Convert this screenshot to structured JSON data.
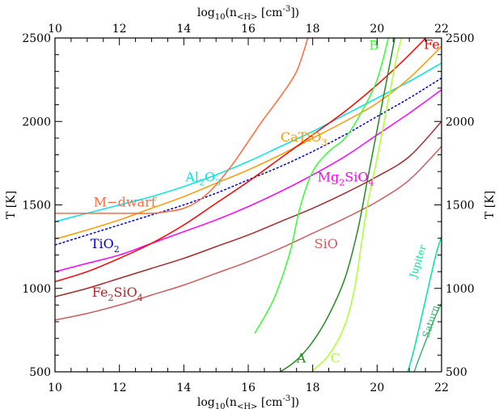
{
  "chart_data": {
    "type": "line",
    "xlabel": "log10(n<H> [cm-3])",
    "xlabel_parts": {
      "pre": "log",
      "sub10": "10",
      "mid": "(n",
      "subH": "<H>",
      "post": " [cm",
      "sup": "-3",
      "end": "])"
    },
    "ylabel": "T [K]",
    "xlim": [
      10,
      22
    ],
    "ylim": [
      500,
      2500
    ],
    "xticks": [
      10,
      12,
      14,
      16,
      18,
      20,
      22
    ],
    "yticks": [
      500,
      1000,
      1500,
      2000,
      2500
    ],
    "xtick_labels": [
      "10",
      "12",
      "14",
      "16",
      "18",
      "20",
      "22"
    ],
    "ytick_labels": [
      "500",
      "1000",
      "1500",
      "2000",
      "2500"
    ],
    "grid": false,
    "series": [
      {
        "name": "Al2O3",
        "label_parts": [
          [
            "Al",
            ""
          ],
          [
            "2",
            "sub"
          ],
          [
            "O",
            ""
          ],
          [
            "3",
            "sub"
          ]
        ],
        "color": "#00e5e5",
        "dash": "",
        "label_at": [
          14.05,
          1640
        ],
        "points": [
          [
            10,
            1400
          ],
          [
            11,
            1450
          ],
          [
            12,
            1500
          ],
          [
            13,
            1550
          ],
          [
            14,
            1610
          ],
          [
            15,
            1680
          ],
          [
            16,
            1760
          ],
          [
            17,
            1850
          ],
          [
            18,
            1940
          ],
          [
            19,
            2040
          ],
          [
            20,
            2140
          ],
          [
            21,
            2240
          ],
          [
            22,
            2350
          ]
        ]
      },
      {
        "name": "CaTiO3",
        "label_parts": [
          [
            "CaTiO",
            ""
          ],
          [
            "3",
            "sub"
          ]
        ],
        "color": "#ff9900",
        "dash": "",
        "label_at": [
          17.0,
          1880
        ],
        "points": [
          [
            10,
            1295
          ],
          [
            11,
            1350
          ],
          [
            12,
            1410
          ],
          [
            13,
            1480
          ],
          [
            14,
            1550
          ],
          [
            15,
            1630
          ],
          [
            16,
            1710
          ],
          [
            17,
            1800
          ],
          [
            18,
            1900
          ],
          [
            19,
            2000
          ],
          [
            20,
            2110
          ],
          [
            21,
            2260
          ],
          [
            22,
            2450
          ]
        ]
      },
      {
        "name": "TiO2",
        "label_parts": [
          [
            "TiO",
            ""
          ],
          [
            "2",
            "sub"
          ]
        ],
        "color": "#0000cc",
        "dash": "3,2",
        "label_at": [
          11.1,
          1240
        ],
        "points": [
          [
            10,
            1260
          ],
          [
            11,
            1320
          ],
          [
            12,
            1380
          ],
          [
            13,
            1440
          ],
          [
            14,
            1500
          ],
          [
            15,
            1570
          ],
          [
            16,
            1650
          ],
          [
            17,
            1730
          ],
          [
            18,
            1820
          ],
          [
            19,
            1920
          ],
          [
            20,
            2030
          ],
          [
            21,
            2140
          ],
          [
            22,
            2260
          ]
        ]
      },
      {
        "name": "Mg2SiO4",
        "label_parts": [
          [
            "Mg",
            ""
          ],
          [
            "2",
            "sub"
          ],
          [
            "SiO",
            ""
          ],
          [
            "4",
            "sub"
          ]
        ],
        "color": "#ff00ff",
        "dash": "",
        "label_at": [
          18.15,
          1640
        ],
        "points": [
          [
            10,
            1100
          ],
          [
            11,
            1150
          ],
          [
            12,
            1200
          ],
          [
            13,
            1270
          ],
          [
            14,
            1340
          ],
          [
            15,
            1410
          ],
          [
            16,
            1490
          ],
          [
            17,
            1580
          ],
          [
            18,
            1680
          ],
          [
            19,
            1790
          ],
          [
            20,
            1920
          ],
          [
            21,
            2050
          ],
          [
            22,
            2190
          ]
        ]
      },
      {
        "name": "Fe",
        "label_parts": [
          [
            "Fe",
            ""
          ]
        ],
        "color": "#ff0000",
        "dash": "",
        "label_at": [
          21.45,
          2435
        ],
        "points": [
          [
            10,
            1040
          ],
          [
            11,
            1100
          ],
          [
            12,
            1180
          ],
          [
            13,
            1270
          ],
          [
            14,
            1380
          ],
          [
            15,
            1510
          ],
          [
            16,
            1640
          ],
          [
            17,
            1780
          ],
          [
            18,
            1920
          ],
          [
            19,
            2060
          ],
          [
            20,
            2220
          ],
          [
            21,
            2400
          ],
          [
            22,
            2600
          ]
        ]
      },
      {
        "name": "Fe2SiO4",
        "label_parts": [
          [
            "Fe",
            ""
          ],
          [
            "2",
            "sub"
          ],
          [
            "SiO",
            ""
          ],
          [
            "4",
            "sub"
          ]
        ],
        "color": "#a52a2a",
        "dash": "",
        "label_at": [
          11.15,
          950
        ],
        "points": [
          [
            10,
            950
          ],
          [
            11,
            1000
          ],
          [
            12,
            1060
          ],
          [
            13,
            1120
          ],
          [
            14,
            1180
          ],
          [
            15,
            1250
          ],
          [
            16,
            1320
          ],
          [
            17,
            1400
          ],
          [
            18,
            1480
          ],
          [
            19,
            1570
          ],
          [
            20,
            1670
          ],
          [
            21,
            1790
          ],
          [
            22,
            2000
          ]
        ]
      },
      {
        "name": "SiO",
        "label_parts": [
          [
            "SiO",
            ""
          ]
        ],
        "color": "#cd5c5c",
        "dash": "",
        "label_at": [
          18.05,
          1240
        ],
        "points": [
          [
            10,
            810
          ],
          [
            11,
            850
          ],
          [
            12,
            900
          ],
          [
            13,
            960
          ],
          [
            14,
            1020
          ],
          [
            15,
            1090
          ],
          [
            16,
            1160
          ],
          [
            17,
            1240
          ],
          [
            18,
            1330
          ],
          [
            19,
            1420
          ],
          [
            20,
            1520
          ],
          [
            21,
            1650
          ],
          [
            22,
            1850
          ]
        ]
      },
      {
        "name": "M-dwarf",
        "label_parts": [
          [
            "M−dwarf",
            ""
          ]
        ],
        "color": "#ff6a3d",
        "dash": "",
        "label_at": [
          11.2,
          1490
        ],
        "points": [
          [
            10,
            1450
          ],
          [
            11,
            1450
          ],
          [
            12,
            1450
          ],
          [
            13,
            1450
          ],
          [
            13.5,
            1460
          ],
          [
            14,
            1480
          ],
          [
            14.5,
            1530
          ],
          [
            15,
            1620
          ],
          [
            15.5,
            1740
          ],
          [
            16,
            1880
          ],
          [
            16.5,
            2020
          ],
          [
            17,
            2150
          ],
          [
            17.5,
            2300
          ],
          [
            17.85,
            2500
          ]
        ]
      },
      {
        "name": "B",
        "label_parts": [
          [
            "B",
            ""
          ]
        ],
        "color": "#33ff33",
        "dash": "",
        "label_at": [
          19.75,
          2430
        ],
        "points": [
          [
            16.2,
            730
          ],
          [
            16.8,
            940
          ],
          [
            17.3,
            1220
          ],
          [
            17.6,
            1480
          ],
          [
            18.0,
            1700
          ],
          [
            18.5,
            1820
          ],
          [
            19.0,
            1900
          ],
          [
            19.5,
            2050
          ],
          [
            20.0,
            2250
          ],
          [
            20.35,
            2500
          ]
        ]
      },
      {
        "name": "A",
        "label_parts": [
          [
            "A",
            ""
          ]
        ],
        "color": "#228b22",
        "dash": "",
        "label_at": [
          17.5,
          555
        ],
        "points": [
          [
            17.0,
            500
          ],
          [
            17.5,
            570
          ],
          [
            18.0,
            680
          ],
          [
            18.5,
            840
          ],
          [
            19.0,
            1060
          ],
          [
            19.4,
            1350
          ],
          [
            19.7,
            1650
          ],
          [
            20.0,
            1950
          ],
          [
            20.3,
            2250
          ],
          [
            20.55,
            2500
          ]
        ]
      },
      {
        "name": "C",
        "label_parts": [
          [
            "C",
            ""
          ]
        ],
        "color": "#adff2f",
        "dash": "",
        "label_at": [
          18.55,
          555
        ],
        "points": [
          [
            17.95,
            500
          ],
          [
            18.5,
            600
          ],
          [
            19.0,
            780
          ],
          [
            19.3,
            1000
          ],
          [
            19.5,
            1250
          ],
          [
            19.7,
            1500
          ],
          [
            20.0,
            1780
          ],
          [
            20.3,
            2080
          ],
          [
            20.6,
            2380
          ],
          [
            20.75,
            2500
          ]
        ]
      },
      {
        "name": "Jupiter",
        "label_parts": [
          [
            "Jupiter",
            ""
          ]
        ],
        "color": "#00e5a0",
        "dash": "",
        "label_at": [
          21.2,
          1060
        ],
        "label_rotate": -72,
        "points": [
          [
            20.95,
            500
          ],
          [
            21.1,
            600
          ],
          [
            21.3,
            760
          ],
          [
            21.5,
            930
          ],
          [
            21.7,
            1100
          ],
          [
            21.85,
            1220
          ],
          [
            22.0,
            1310
          ]
        ]
      },
      {
        "name": "Saturn",
        "label_parts": [
          [
            "Saturn",
            ""
          ]
        ],
        "color": "#3cb371",
        "dash": "",
        "label_at": [
          21.6,
          700
        ],
        "label_rotate": -72,
        "points": [
          [
            21.15,
            500
          ],
          [
            21.3,
            580
          ],
          [
            21.5,
            680
          ],
          [
            21.7,
            780
          ],
          [
            21.85,
            850
          ],
          [
            22.0,
            910
          ]
        ]
      }
    ]
  }
}
